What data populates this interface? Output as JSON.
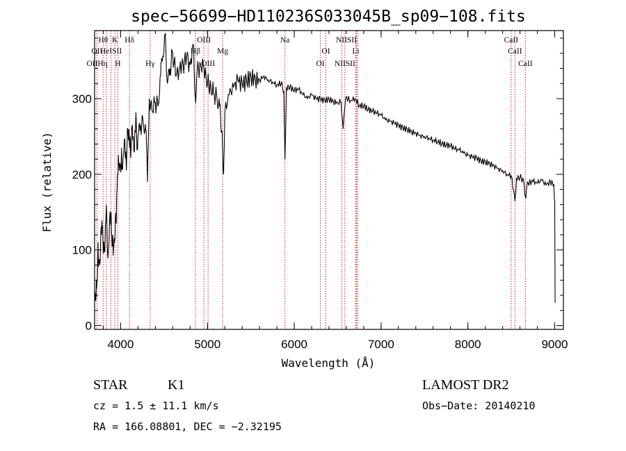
{
  "chart_data": {
    "type": "line",
    "title": "spec−56699−HD110236S033045B_sp09−108.fits",
    "xlabel": "Wavelength (Å)",
    "ylabel": "Flux (relative)",
    "xlim": [
      3700,
      9100
    ],
    "ylim": [
      -5,
      390
    ],
    "xticks": [
      4000,
      5000,
      6000,
      7000,
      8000,
      9000
    ],
    "yticks": [
      0,
      100,
      200,
      300
    ],
    "spectrum": [
      [
        3700,
        30
      ],
      [
        3720,
        60
      ],
      [
        3740,
        110
      ],
      [
        3760,
        80
      ],
      [
        3780,
        120
      ],
      [
        3800,
        95
      ],
      [
        3830,
        140
      ],
      [
        3860,
        100
      ],
      [
        3890,
        150
      ],
      [
        3910,
        120
      ],
      [
        3930,
        110
      ],
      [
        3950,
        135
      ],
      [
        3970,
        200
      ],
      [
        3990,
        215
      ],
      [
        4010,
        235
      ],
      [
        4030,
        225
      ],
      [
        4060,
        230
      ],
      [
        4090,
        245
      ],
      [
        4110,
        250
      ],
      [
        4140,
        245
      ],
      [
        4170,
        255
      ],
      [
        4200,
        250
      ],
      [
        4230,
        265
      ],
      [
        4260,
        268
      ],
      [
        4290,
        258
      ],
      [
        4310,
        190
      ],
      [
        4330,
        300
      ],
      [
        4360,
        285
      ],
      [
        4400,
        295
      ],
      [
        4430,
        290
      ],
      [
        4460,
        330
      ],
      [
        4480,
        350
      ],
      [
        4510,
        385
      ],
      [
        4540,
        320
      ],
      [
        4570,
        340
      ],
      [
        4600,
        360
      ],
      [
        4640,
        330
      ],
      [
        4680,
        340
      ],
      [
        4720,
        345
      ],
      [
        4760,
        355
      ],
      [
        4800,
        345
      ],
      [
        4840,
        370
      ],
      [
        4861,
        300
      ],
      [
        4880,
        335
      ],
      [
        4920,
        345
      ],
      [
        4960,
        340
      ],
      [
        5000,
        320
      ],
      [
        5040,
        315
      ],
      [
        5080,
        305
      ],
      [
        5110,
        300
      ],
      [
        5140,
        290
      ],
      [
        5170,
        255
      ],
      [
        5183,
        200
      ],
      [
        5200,
        280
      ],
      [
        5250,
        305
      ],
      [
        5300,
        315
      ],
      [
        5350,
        325
      ],
      [
        5400,
        320
      ],
      [
        5450,
        325
      ],
      [
        5500,
        330
      ],
      [
        5550,
        328
      ],
      [
        5600,
        325
      ],
      [
        5650,
        330
      ],
      [
        5700,
        325
      ],
      [
        5750,
        322
      ],
      [
        5800,
        318
      ],
      [
        5850,
        320
      ],
      [
        5880,
        310
      ],
      [
        5893,
        220
      ],
      [
        5910,
        315
      ],
      [
        5950,
        315
      ],
      [
        6000,
        310
      ],
      [
        6050,
        312
      ],
      [
        6100,
        305
      ],
      [
        6150,
        300
      ],
      [
        6200,
        305
      ],
      [
        6250,
        300
      ],
      [
        6300,
        300
      ],
      [
        6350,
        298
      ],
      [
        6400,
        300
      ],
      [
        6450,
        297
      ],
      [
        6500,
        295
      ],
      [
        6540,
        295
      ],
      [
        6563,
        260
      ],
      [
        6590,
        300
      ],
      [
        6650,
        298
      ],
      [
        6700,
        300
      ],
      [
        6750,
        290
      ],
      [
        6800,
        290
      ],
      [
        6850,
        285
      ],
      [
        6900,
        283
      ],
      [
        6950,
        280
      ],
      [
        7000,
        278
      ],
      [
        7050,
        272
      ],
      [
        7100,
        270
      ],
      [
        7150,
        268
      ],
      [
        7200,
        265
      ],
      [
        7250,
        262
      ],
      [
        7300,
        260
      ],
      [
        7350,
        257
      ],
      [
        7400,
        255
      ],
      [
        7450,
        252
      ],
      [
        7500,
        250
      ],
      [
        7550,
        248
      ],
      [
        7600,
        245
      ],
      [
        7650,
        243
      ],
      [
        7700,
        240
      ],
      [
        7750,
        238
      ],
      [
        7800,
        237
      ],
      [
        7850,
        233
      ],
      [
        7900,
        232
      ],
      [
        7950,
        228
      ],
      [
        8000,
        225
      ],
      [
        8050,
        223
      ],
      [
        8100,
        222
      ],
      [
        8150,
        218
      ],
      [
        8200,
        217
      ],
      [
        8250,
        215
      ],
      [
        8300,
        212
      ],
      [
        8350,
        208
      ],
      [
        8400,
        205
      ],
      [
        8450,
        200
      ],
      [
        8500,
        198
      ],
      [
        8542,
        165
      ],
      [
        8560,
        195
      ],
      [
        8600,
        196
      ],
      [
        8640,
        192
      ],
      [
        8662,
        170
      ],
      [
        8690,
        190
      ],
      [
        8750,
        190
      ],
      [
        8800,
        188
      ],
      [
        8850,
        192
      ],
      [
        8900,
        186
      ],
      [
        8950,
        190
      ],
      [
        8990,
        187
      ],
      [
        9000,
        165
      ],
      [
        9005,
        30
      ]
    ],
    "lines": [
      {
        "label": "Hθ",
        "wl": 3798,
        "row": 0
      },
      {
        "label": "K",
        "wl": 3934,
        "row": 0
      },
      {
        "label": "Hδ",
        "wl": 4102,
        "row": 0
      },
      {
        "label": "OIII",
        "wl": 4959,
        "row": 0
      },
      {
        "label": "Na",
        "wl": 5893,
        "row": 0
      },
      {
        "label": "NIISII",
        "wl": 6600,
        "row": 0
      },
      {
        "label": "CaII",
        "wl": 8498,
        "row": 0
      },
      {
        "label": "OII",
        "wl": 3727,
        "row": 1
      },
      {
        "label": "HeISII",
        "wl": 3889,
        "row": 1
      },
      {
        "label": "Hβ",
        "wl": 4861,
        "row": 1
      },
      {
        "label": "Mg",
        "wl": 5175,
        "row": 1
      },
      {
        "label": "OI",
        "wl": 6364,
        "row": 1
      },
      {
        "label": "Li",
        "wl": 6708,
        "row": 1
      },
      {
        "label": "CaII",
        "wl": 8542,
        "row": 1
      },
      {
        "label": "OIIHη",
        "wl": 3729,
        "row": 2
      },
      {
        "label": "H",
        "wl": 3968,
        "row": 2
      },
      {
        "label": "Hγ",
        "wl": 4340,
        "row": 2
      },
      {
        "label": "OIII",
        "wl": 5007,
        "row": 2
      },
      {
        "label": "OI",
        "wl": 6300,
        "row": 2
      },
      {
        "label": "NIISII",
        "wl": 6583,
        "row": 2
      },
      {
        "label": "CaII",
        "wl": 8662,
        "row": 2
      }
    ],
    "line_markers": [
      3727,
      3798,
      3835,
      3889,
      3934,
      3968,
      4102,
      4340,
      4861,
      4959,
      5007,
      5175,
      5893,
      6300,
      6364,
      6548,
      6583,
      6708,
      6717,
      6731,
      8498,
      8542,
      8662
    ]
  },
  "info": {
    "object_class": "STAR",
    "subclass": "K1",
    "survey": "LAMOST DR2",
    "redshift": "cz = 1.5 ± 11.1 km/s",
    "obs_date": "Obs−Date: 20140210",
    "coords": "RA = 166.08801, DEC =  −2.32195"
  }
}
